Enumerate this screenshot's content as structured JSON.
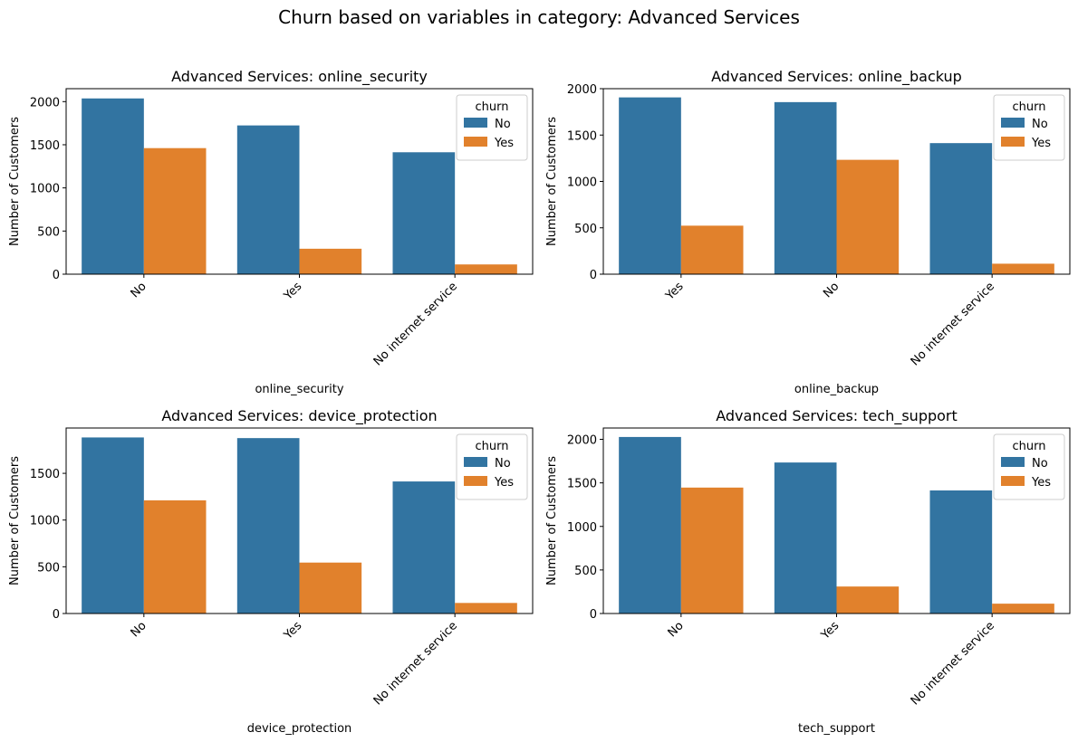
{
  "figure": {
    "title": "Churn based on variables in category: Advanced Services"
  },
  "colors": {
    "No": "#3274a1",
    "Yes": "#e1812c",
    "axis": "#000000",
    "legend_border": "#cccccc"
  },
  "chart_data": [
    {
      "type": "bar",
      "title": "Advanced Services: online_security",
      "xlabel": "online_security",
      "ylabel": "Number of Customers",
      "categories": [
        "No",
        "Yes",
        "No internet service"
      ],
      "ylim": [
        0,
        2150
      ],
      "yticks": [
        0,
        500,
        1000,
        1500,
        2000
      ],
      "legend": {
        "title": "churn",
        "position": "upper right"
      },
      "series": [
        {
          "name": "No",
          "values": [
            2037,
            1724,
            1413
          ]
        },
        {
          "name": "Yes",
          "values": [
            1461,
            295,
            113
          ]
        }
      ]
    },
    {
      "type": "bar",
      "title": "Advanced Services: online_backup",
      "xlabel": "online_backup",
      "ylabel": "Number of Customers",
      "categories": [
        "Yes",
        "No",
        "No internet service"
      ],
      "ylim": [
        0,
        2000
      ],
      "yticks": [
        0,
        500,
        1000,
        1500,
        2000
      ],
      "legend": {
        "title": "churn",
        "position": "upper right"
      },
      "series": [
        {
          "name": "No",
          "values": [
            1906,
            1855,
            1413
          ]
        },
        {
          "name": "Yes",
          "values": [
            523,
            1233,
            113
          ]
        }
      ]
    },
    {
      "type": "bar",
      "title": "Advanced Services: device_protection",
      "xlabel": "device_protection",
      "ylabel": "Number of Customers",
      "categories": [
        "No",
        "Yes",
        "No internet service"
      ],
      "ylim": [
        0,
        1985
      ],
      "yticks": [
        0,
        500,
        1000,
        1500
      ],
      "legend": {
        "title": "churn",
        "position": "upper right"
      },
      "series": [
        {
          "name": "No",
          "values": [
            1884,
            1877,
            1413
          ]
        },
        {
          "name": "Yes",
          "values": [
            1211,
            545,
            113
          ]
        }
      ]
    },
    {
      "type": "bar",
      "title": "Advanced Services: tech_support",
      "xlabel": "tech_support",
      "ylabel": "Number of Customers",
      "categories": [
        "No",
        "Yes",
        "No internet service"
      ],
      "ylim": [
        0,
        2130
      ],
      "yticks": [
        0,
        500,
        1000,
        1500,
        2000
      ],
      "legend": {
        "title": "churn",
        "position": "upper right"
      },
      "series": [
        {
          "name": "No",
          "values": [
            2027,
            1734,
            1413
          ]
        },
        {
          "name": "Yes",
          "values": [
            1446,
            310,
            113
          ]
        }
      ]
    }
  ]
}
